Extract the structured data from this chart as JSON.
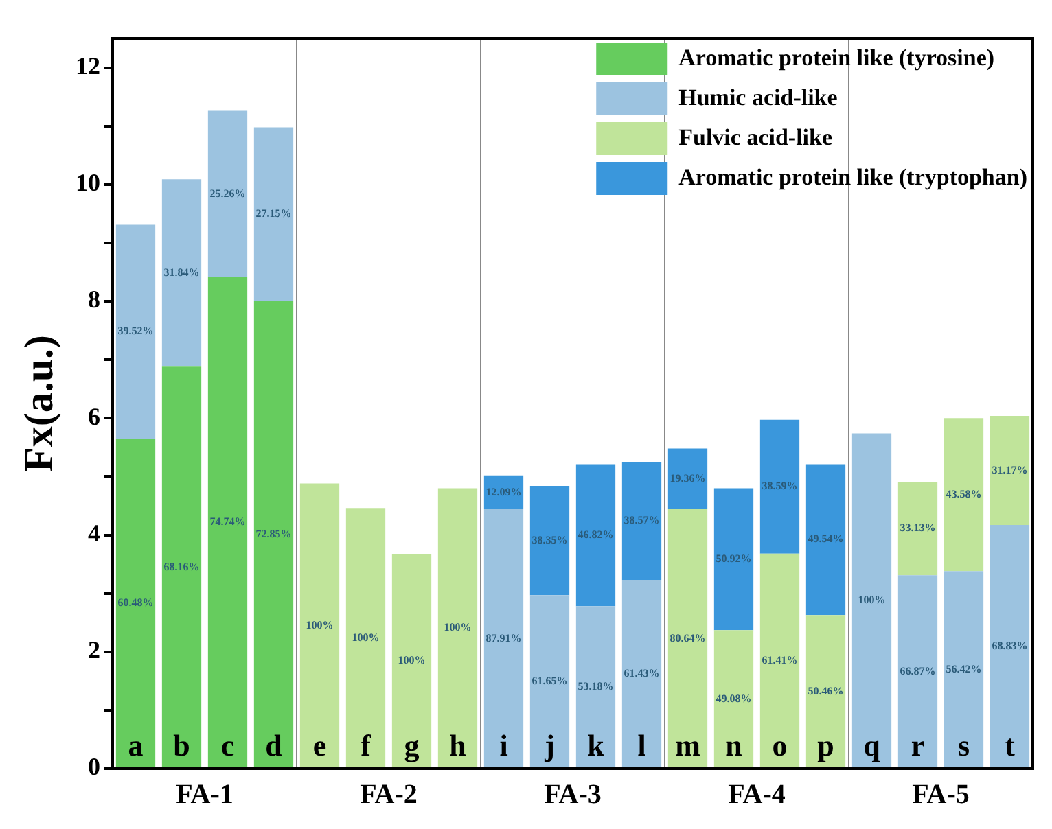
{
  "chart_data": {
    "type": "bar",
    "stacked": true,
    "ylabel": "Fx(a.u.)",
    "categories": [
      "a",
      "b",
      "c",
      "d",
      "e",
      "f",
      "g",
      "h",
      "i",
      "j",
      "k",
      "l",
      "m",
      "n",
      "o",
      "p",
      "q",
      "r",
      "s",
      "t"
    ],
    "series": [
      {
        "name": "Aromatic protein like (tyrosine)",
        "color": "#66cc5e",
        "values": [
          5.65,
          6.88,
          8.42,
          8.01,
          null,
          null,
          null,
          null,
          null,
          null,
          null,
          null,
          null,
          null,
          null,
          null,
          null,
          null,
          null,
          null
        ]
      },
      {
        "name": "Humic acid-like",
        "color": "#9cc3e0",
        "values": [
          3.66,
          3.21,
          2.84,
          2.97,
          null,
          null,
          null,
          null,
          4.44,
          2.97,
          2.78,
          3.23,
          null,
          null,
          null,
          null,
          5.74,
          3.31,
          3.38,
          4.17
        ]
      },
      {
        "name": "Fulvic acid-like",
        "color": "#c0e49a",
        "values": [
          null,
          null,
          null,
          null,
          4.88,
          4.46,
          3.67,
          4.8,
          null,
          null,
          null,
          null,
          4.44,
          2.37,
          3.68,
          2.63,
          null,
          1.6,
          2.62,
          1.87
        ]
      },
      {
        "name": "Aromatic protein like (tryptophan)",
        "color": "#3a97dc",
        "values": [
          null,
          null,
          null,
          null,
          null,
          null,
          null,
          null,
          0.58,
          1.87,
          2.43,
          2.02,
          1.04,
          2.43,
          2.29,
          2.58,
          null,
          null,
          null,
          null
        ]
      }
    ],
    "ylim": [
      0,
      12.5
    ],
    "yticks": [
      0,
      {
        "value": 1,
        "label": null
      },
      2,
      {
        "value": 3,
        "label": null
      },
      4,
      {
        "value": 5,
        "label": null
      },
      6,
      {
        "value": 7,
        "label": null
      },
      8,
      {
        "value": 9,
        "label": null
      },
      10,
      {
        "value": 11,
        "label": null
      },
      12
    ],
    "annotations": [
      "FA-1",
      "FA-2",
      "FA-3",
      "FA-4",
      "FA-5",
      "60.48%",
      "39.52%",
      "68.16%",
      "31.84%",
      "74.74%",
      "25.26%",
      "72.85%",
      "27.15%",
      "100%",
      "100%",
      "100%",
      "100%",
      "87.91%",
      "12.09%",
      "61.65%",
      "38.35%",
      "53.18%",
      "46.82%",
      "61.43%",
      "38.57%",
      "80.64%",
      "19.36%",
      "49.08%",
      "50.92%",
      "61.41%",
      "38.59%",
      "50.46%",
      "49.54%",
      "100%",
      "66.87%",
      "33.13%",
      "56.42%",
      "43.58%",
      "68.83%",
      "31.17%"
    ],
    "legend": "top right",
    "grid": false
  }
}
